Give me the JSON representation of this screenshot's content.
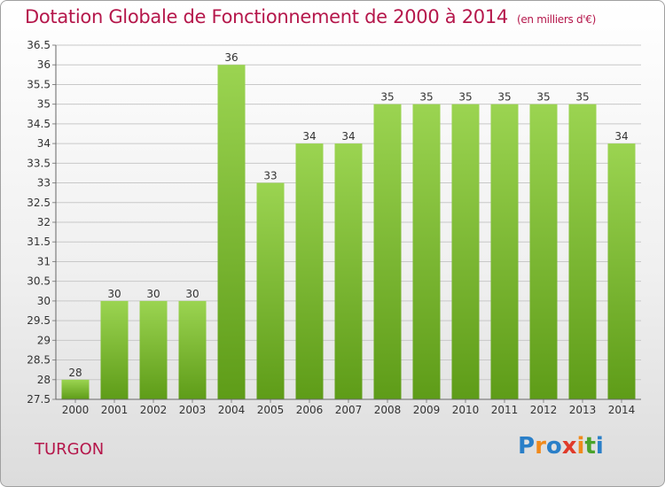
{
  "header": {
    "title": "Dotation Globale de Fonctionnement de 2000 à 2014",
    "unit": "(en milliers d'€)"
  },
  "footer": {
    "commune": "TURGON",
    "logo": "Proxiti"
  },
  "colors": {
    "title": "#b5174b",
    "bar_top": "#9bd451",
    "bar_bottom": "#5e9c18",
    "grid": "#c8c8c8"
  },
  "chart_data": {
    "type": "bar",
    "title": "Dotation Globale de Fonctionnement de 2000 à 2014",
    "xlabel": "",
    "ylabel": "",
    "ylim": [
      27.5,
      36.5
    ],
    "ytick_step": 0.5,
    "grid": true,
    "categories": [
      "2000",
      "2001",
      "2002",
      "2003",
      "2004",
      "2005",
      "2006",
      "2007",
      "2008",
      "2009",
      "2010",
      "2011",
      "2012",
      "2013",
      "2014"
    ],
    "values": [
      28,
      30,
      30,
      30,
      36,
      33,
      34,
      34,
      35,
      35,
      35,
      35,
      35,
      35,
      34
    ],
    "data_labels": [
      "28",
      "30",
      "30",
      "30",
      "36",
      "33",
      "34",
      "34",
      "35",
      "35",
      "35",
      "35",
      "35",
      "35",
      "34"
    ]
  }
}
